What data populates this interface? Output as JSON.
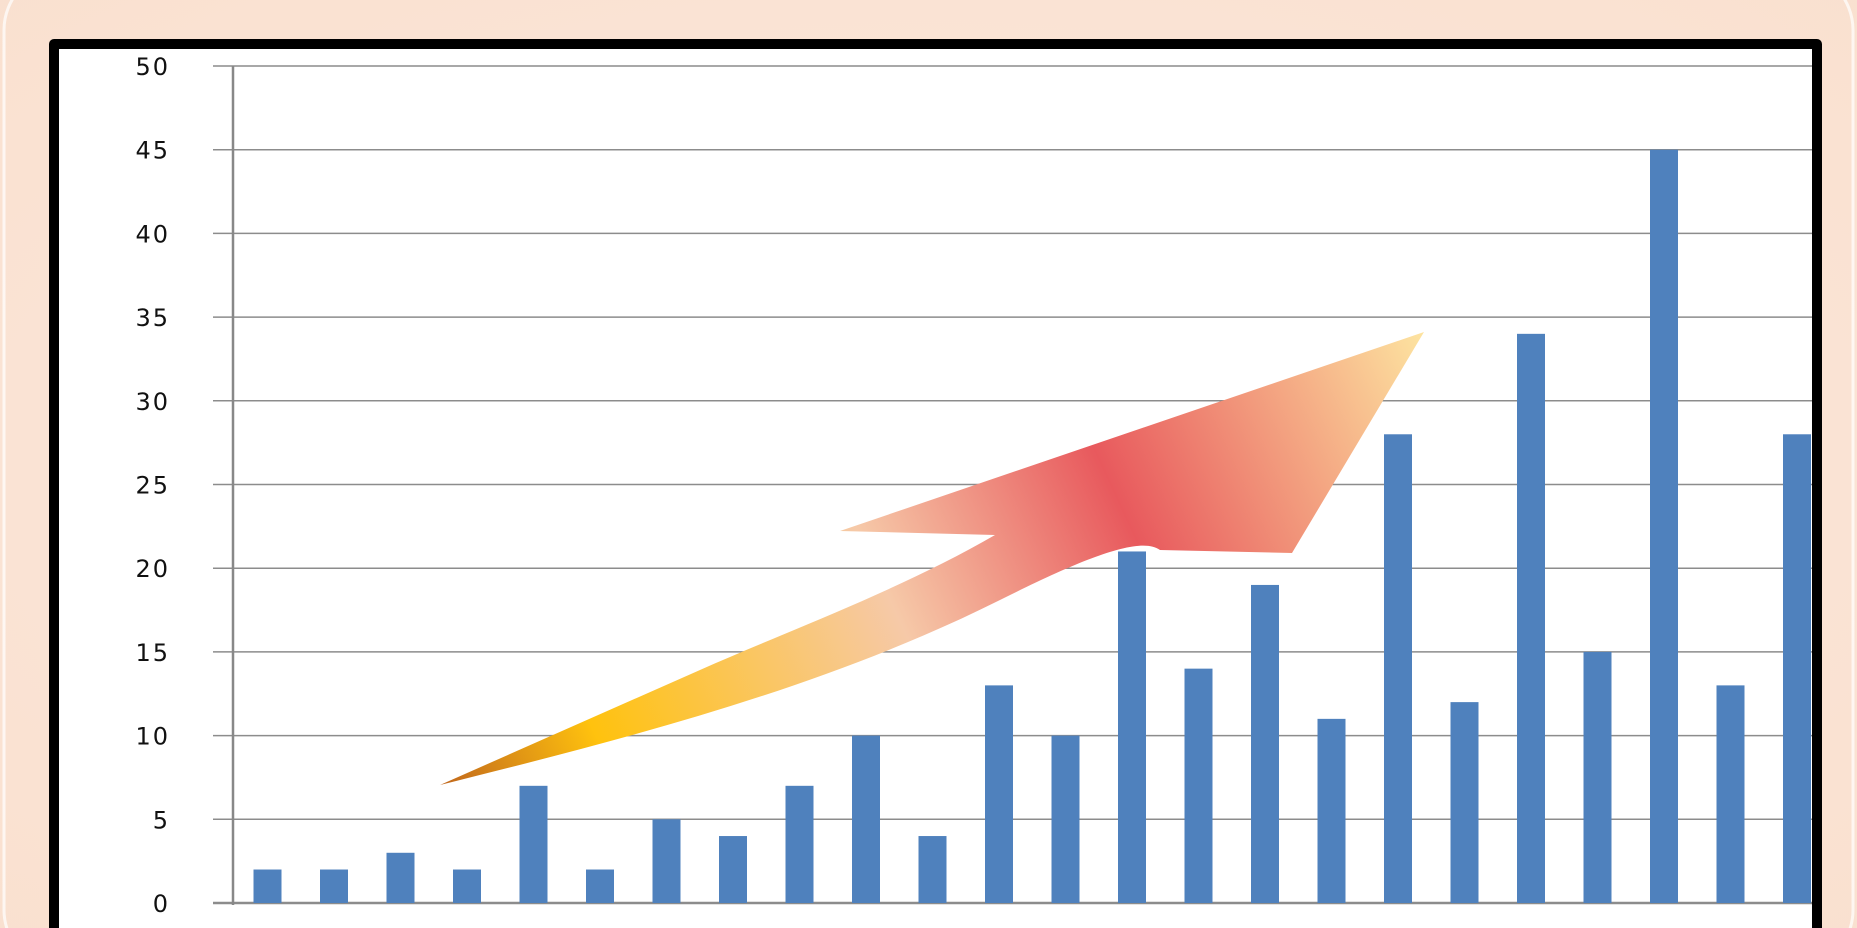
{
  "chart_data": {
    "type": "bar",
    "title": "",
    "xlabel": "",
    "ylabel": "",
    "ylim": [
      0,
      50
    ],
    "yticks": [
      "0",
      "5",
      "10",
      "15",
      "20",
      "25",
      "30",
      "35",
      "40",
      "45",
      "50"
    ],
    "grid": true,
    "legend": "none",
    "values": [
      2,
      2,
      3,
      2,
      7,
      2,
      5,
      4,
      7,
      10,
      4,
      13,
      10,
      21,
      14,
      19,
      11,
      28,
      12,
      34,
      15,
      45,
      13,
      28
    ],
    "colors": {
      "bar": "#4f81bd",
      "grid": "#8c8c8c",
      "frame": "#000000",
      "background": "#fbe6da",
      "arrow_gradient": [
        "#c0661c",
        "#ffc20e",
        "#f6c9a8",
        "#e8595d",
        "#fde3a0"
      ]
    },
    "annotations": [
      {
        "kind": "upward-trend-arrow-icon"
      }
    ]
  }
}
